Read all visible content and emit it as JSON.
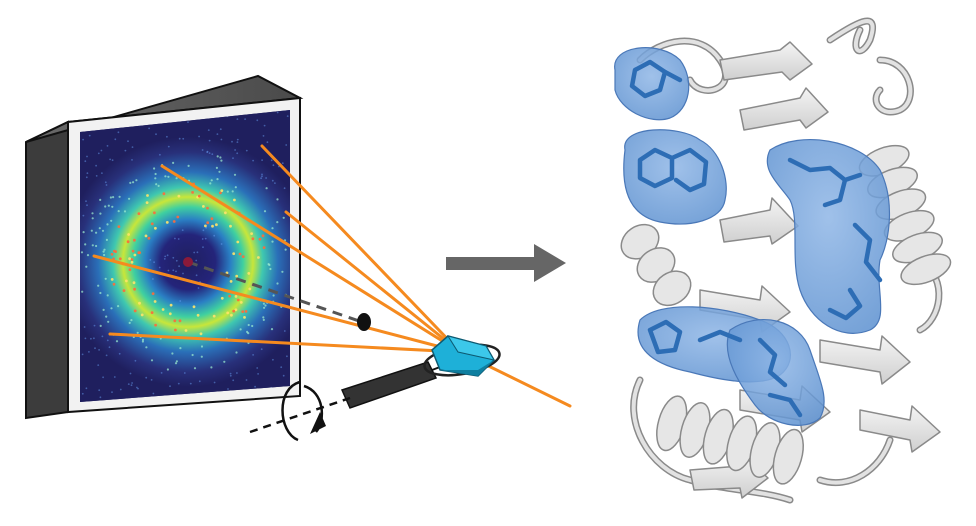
{
  "diagram": {
    "description_free": true,
    "colors": {
      "background": "#ffffff",
      "detector_frame": "#5a5a5a",
      "detector_frame_dark": "#3a3a3a",
      "detector_border": "#111111",
      "detector_inner_bezel": "#e6e6e6",
      "detector_screen": "#1f1f5e",
      "diffraction_ring_outer": "#1aa0c0",
      "diffraction_ring_inner": "#c8e63a",
      "xray_beam": "#f58a1f",
      "direct_beam_dash": "#555555",
      "beamstop": "#111111",
      "crystal": "#1eb0d8",
      "crystal_dark": "#0f7fa0",
      "loop": "#222222",
      "goniometer_pin": "#333333",
      "rotation_arrow": "#111111",
      "process_arrow": "#666666",
      "protein_ribbon": "#e2e2e2",
      "protein_ribbon_edge": "#8a8a8a",
      "ligand_surface": "#6f9fd8",
      "ligand_sticks": "#2d6db5"
    },
    "icons": {
      "detector": "diffraction-detector-icon",
      "crystal": "crystal-icon",
      "rotation": "rotation-arrow-icon",
      "arrow": "process-arrow-icon",
      "structure": "protein-structure-icon"
    }
  }
}
